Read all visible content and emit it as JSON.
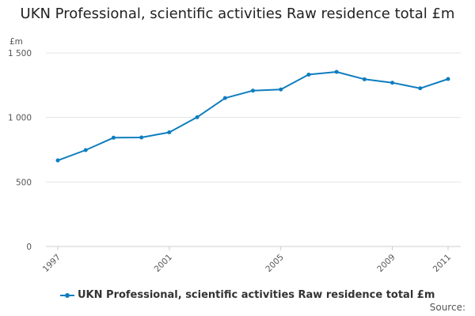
{
  "title": "UKN Professional, scientific activities Raw residence total £m",
  "source_label": "Source:",
  "colors": {
    "series": "#0e7dbf",
    "grid": "#e5e5e5",
    "axis_text": "#555555"
  },
  "chart_data": {
    "type": "line",
    "title": "UKN Professional, scientific activities Raw residence total £m",
    "ylabel": "£m",
    "xlabel": "",
    "ylim": [
      0,
      1500
    ],
    "yticks": [
      0,
      500,
      1000,
      1500
    ],
    "ytick_labels": [
      "0",
      "500",
      "1 000",
      "1 500"
    ],
    "xlim": [
      1997,
      2011
    ],
    "xticks": [
      1997,
      2001,
      2005,
      2009,
      2011
    ],
    "xtick_labels": [
      "1997",
      "2001",
      "2005",
      "2009",
      "2011"
    ],
    "grid": true,
    "legend_position": "bottom",
    "x": [
      1997,
      1998,
      1999,
      2000,
      2001,
      2002,
      2003,
      2004,
      2005,
      2006,
      2007,
      2008,
      2009,
      2010,
      2011
    ],
    "series": [
      {
        "name": "UKN Professional, scientific activities Raw residence total £m",
        "color": "#0e7dbf",
        "values": [
          667,
          747,
          843,
          845,
          885,
          1002,
          1150,
          1208,
          1217,
          1332,
          1353,
          1296,
          1269,
          1226,
          1298
        ]
      }
    ]
  }
}
